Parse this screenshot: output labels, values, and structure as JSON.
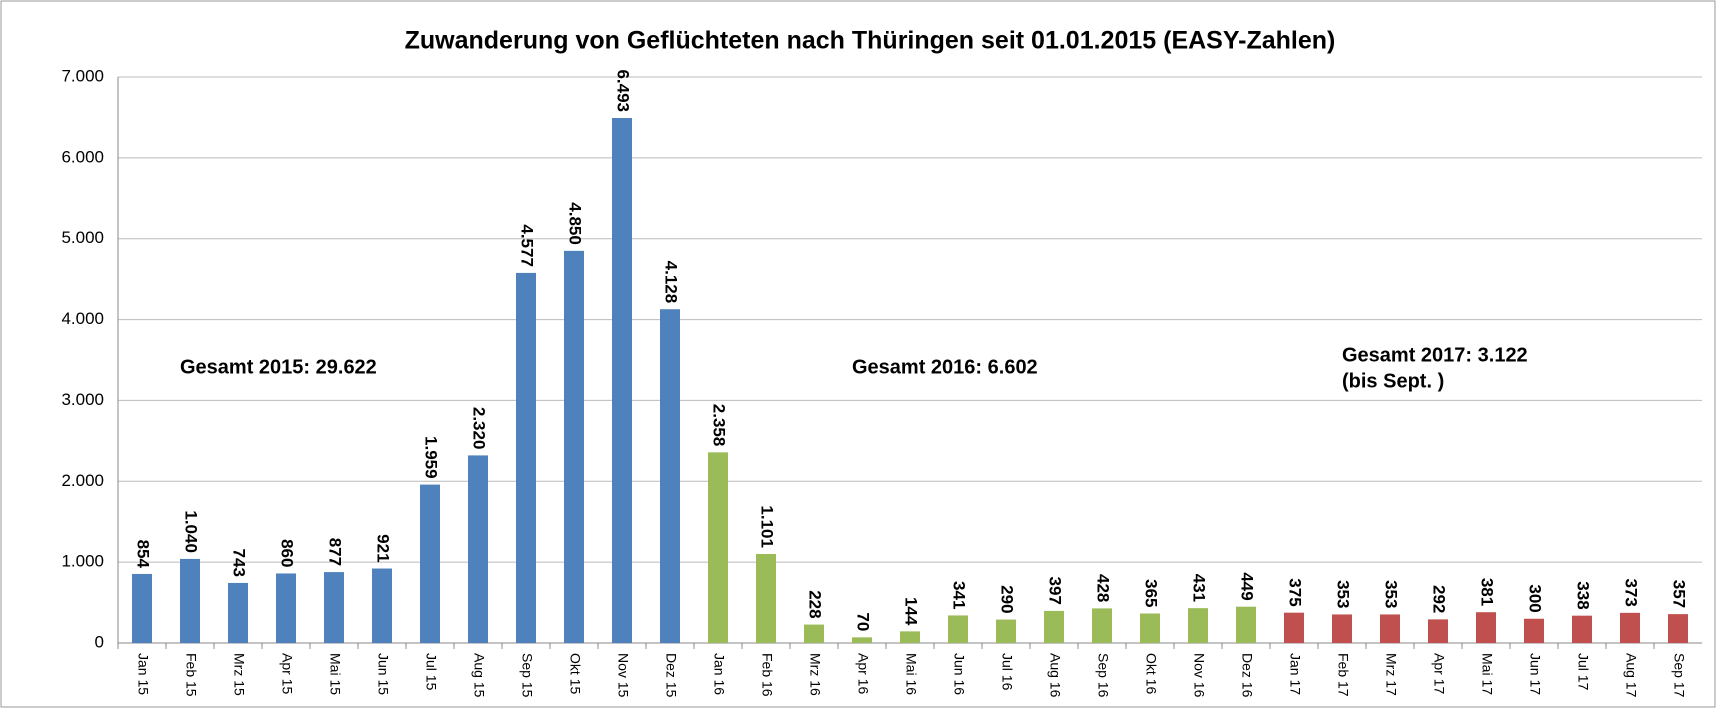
{
  "chart_data": {
    "type": "bar",
    "title": "Zuwanderung von Geflüchteten nach Thüringen seit 01.01.2015 (EASY-Zahlen)",
    "categories": [
      "Jan 15",
      "Feb 15",
      "Mrz 15",
      "Apr 15",
      "Mai 15",
      "Jun 15",
      "Jul 15",
      "Aug 15",
      "Sep 15",
      "Okt 15",
      "Nov 15",
      "Dez 15",
      "Jan 16",
      "Feb 16",
      "Mrz 16",
      "Apr 16",
      "Mai 16",
      "Jun 16",
      "Jul 16",
      "Aug 16",
      "Sep 16",
      "Okt 16",
      "Nov 16",
      "Dez 16",
      "Jan 17",
      "Feb 17",
      "Mrz 17",
      "Apr 17",
      "Mai 17",
      "Jun 17",
      "Jul 17",
      "Aug 17",
      "Sep 17"
    ],
    "values": [
      854,
      1040,
      743,
      860,
      877,
      921,
      1959,
      2320,
      4577,
      4850,
      6493,
      4128,
      2358,
      1101,
      228,
      70,
      144,
      341,
      290,
      397,
      428,
      365,
      431,
      449,
      375,
      353,
      353,
      292,
      381,
      300,
      338,
      373,
      357
    ],
    "value_labels": [
      "854",
      "1.040",
      "743",
      "860",
      "877",
      "921",
      "1.959",
      "2.320",
      "4.577",
      "4.850",
      "6.493",
      "4.128",
      "2.358",
      "1.101",
      "228",
      "70",
      "144",
      "341",
      "290",
      "397",
      "428",
      "365",
      "431",
      "449",
      "375",
      "353",
      "353",
      "292",
      "381",
      "300",
      "338",
      "373",
      "357"
    ],
    "colors": [
      "#4f81bd",
      "#4f81bd",
      "#4f81bd",
      "#4f81bd",
      "#4f81bd",
      "#4f81bd",
      "#4f81bd",
      "#4f81bd",
      "#4f81bd",
      "#4f81bd",
      "#4f81bd",
      "#4f81bd",
      "#9bbb59",
      "#9bbb59",
      "#9bbb59",
      "#9bbb59",
      "#9bbb59",
      "#9bbb59",
      "#9bbb59",
      "#9bbb59",
      "#9bbb59",
      "#9bbb59",
      "#9bbb59",
      "#9bbb59",
      "#c0504d",
      "#c0504d",
      "#c0504d",
      "#c0504d",
      "#c0504d",
      "#c0504d",
      "#c0504d",
      "#c0504d",
      "#c0504d"
    ],
    "ylim": [
      0,
      7000
    ],
    "yticks": [
      0,
      {
        "value": 1000,
        "label": "1.000"
      },
      {
        "value": 2000,
        "label": "2.000"
      },
      {
        "value": 3000,
        "label": "3.000"
      },
      {
        "value": 4000,
        "label": "4.000"
      },
      {
        "value": 5000,
        "label": "5.000"
      },
      {
        "value": 6000,
        "label": "6.000"
      },
      {
        "value": 7000,
        "label": "7.000"
      }
    ],
    "grid": true,
    "annotations": [
      {
        "text": "Gesamt 2015: 29.622",
        "color": "#4f81bd"
      },
      {
        "text": "Gesamt 2016: 6.602",
        "color": "#9bbb59"
      },
      {
        "text": "Gesamt 2017: 3.122",
        "color": "#c0504d"
      },
      {
        "text": "(bis Sept. )",
        "color": "#c0504d"
      }
    ]
  }
}
